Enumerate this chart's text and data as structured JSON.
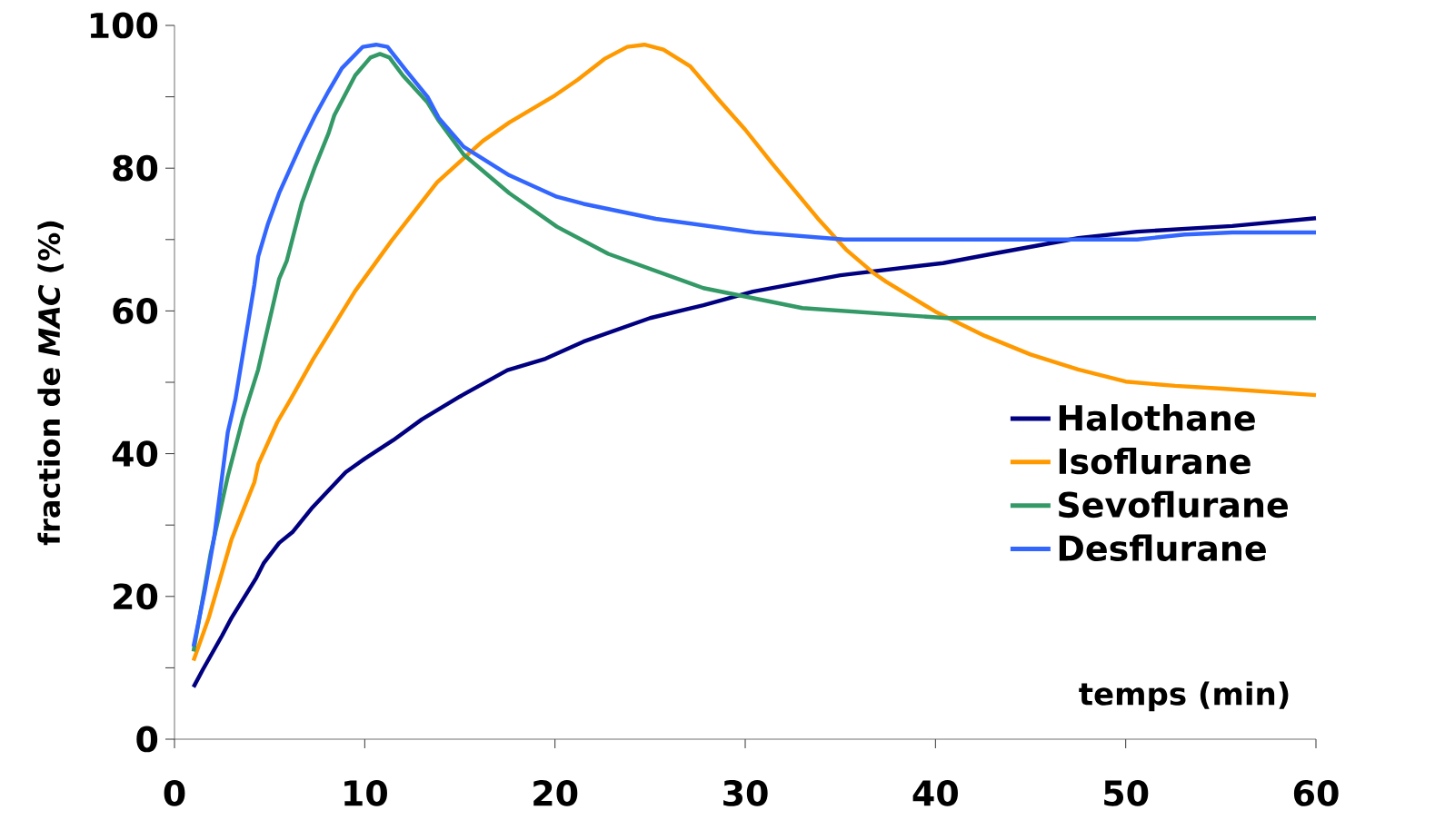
{
  "chart_data": {
    "type": "line",
    "xlabel": "temps (min)",
    "ylabel": "fraction de *MAC* (%)",
    "xlim": [
      0,
      60
    ],
    "ylim": [
      0,
      100
    ],
    "xticks": [
      0,
      10,
      20,
      30,
      40,
      50,
      60
    ],
    "yticks": [
      0,
      {
        "value": 10,
        "label": null
      },
      20,
      {
        "value": 30,
        "label": null
      },
      40,
      {
        "value": 50,
        "label": null
      },
      60,
      {
        "value": 70,
        "label": null
      },
      80,
      {
        "value": 90,
        "label": null
      },
      100
    ],
    "grid": false,
    "legend": "right",
    "marker": "none",
    "line_style": "solid",
    "series": [
      {
        "name": "Halothane",
        "color": "#000080",
        "x": [
          1,
          1.5,
          2.5,
          3,
          4.3,
          4.7,
          5.5,
          6.2,
          7.2,
          9,
          10,
          11.5,
          13,
          15,
          17.5,
          19.5,
          21.5,
          25,
          27.8,
          30.4,
          35,
          40.4,
          43,
          47.5,
          50.6,
          55.6,
          60
        ],
        "values": [
          7.3,
          9.8,
          14.5,
          17,
          22.6,
          24.7,
          27.5,
          29,
          32.3,
          37.4,
          39.3,
          41.9,
          44.8,
          48,
          51.7,
          53.3,
          55.7,
          59,
          60.8,
          62.7,
          65,
          66.7,
          68,
          70.2,
          71.1,
          71.9,
          73
        ]
      },
      {
        "name": "Isoflurane",
        "color": "#ff9900",
        "x": [
          1,
          1.8,
          3,
          4.2,
          4.4,
          5.4,
          6.1,
          7.3,
          9.5,
          11.4,
          13.8,
          16.2,
          17.6,
          20,
          21.2,
          22.6,
          23.8,
          24.7,
          25.7,
          27.1,
          28.6,
          30,
          31.4,
          33.8,
          35.3,
          36.7,
          37.4,
          40,
          42.6,
          45,
          47.5,
          50,
          52.6,
          55.1,
          60
        ],
        "values": [
          11,
          17,
          28,
          36,
          38.5,
          44.4,
          47.6,
          53.3,
          62.8,
          69.8,
          78,
          83.8,
          86.4,
          90.2,
          92.4,
          95.3,
          97,
          97.3,
          96.6,
          94.3,
          89.6,
          85.4,
          80.7,
          73,
          68.6,
          65.4,
          64.1,
          59.9,
          56.5,
          53.9,
          51.8,
          50.1,
          49.5,
          49.1,
          48.2
        ]
      },
      {
        "name": "Sevoflurane",
        "color": "#339966",
        "x": [
          1,
          1.9,
          2.8,
          3.6,
          4.4,
          5.5,
          5.9,
          6.7,
          7.4,
          8.1,
          8.4,
          9.5,
          10.3,
          10.8,
          11.3,
          12,
          13.3,
          13.9,
          15.2,
          17.6,
          20.1,
          22.8,
          27.8,
          33,
          40.6,
          50,
          60
        ],
        "values": [
          12.3,
          26,
          36.8,
          45,
          51.8,
          64.5,
          67,
          75.2,
          80.3,
          84.9,
          87.4,
          93,
          95.5,
          96,
          95.5,
          93,
          89.2,
          86.6,
          81.9,
          76.5,
          71.8,
          68,
          63.2,
          60.4,
          59,
          59,
          59
        ]
      },
      {
        "name": "Desflurane",
        "color": "#3366ff",
        "x": [
          1,
          1.6,
          2.1,
          2.8,
          3.2,
          4.2,
          4.4,
          4.9,
          5.5,
          6.7,
          7.4,
          8.1,
          8.8,
          9.9,
          10.6,
          11.2,
          12.2,
          13.3,
          13.9,
          15.2,
          17.6,
          20.1,
          21.5,
          25.3,
          30.5,
          35.2,
          50.6,
          53.1,
          55.6,
          60
        ],
        "values": [
          13,
          20.9,
          28.5,
          43,
          47.6,
          63.7,
          67.6,
          72.1,
          76.5,
          83.6,
          87.4,
          90.8,
          94,
          97,
          97.3,
          97,
          93.6,
          90,
          87,
          83,
          79,
          76,
          75,
          72.9,
          71,
          70,
          70,
          70.7,
          71,
          71
        ]
      }
    ]
  }
}
